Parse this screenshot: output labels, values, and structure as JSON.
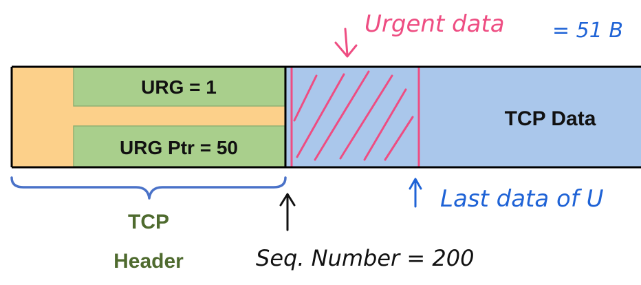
{
  "header_fields": {
    "urg_flag": "URG = 1",
    "urg_ptr": "URG Ptr = 50"
  },
  "data_label": "TCP Data",
  "header_caption": {
    "line1": "TCP",
    "line2": "Header"
  },
  "annotations": {
    "urgent_data": "Urgent data",
    "urgent_size": "= 51 B",
    "last_data": "Last data of U",
    "seq_number": "Seq. Number = 200"
  },
  "colors": {
    "header_bg": "#fcd08a",
    "field_bg": "#a9cf8c",
    "data_bg": "#aac7eb",
    "pink_ink": "#ee4d82",
    "blue_ink": "#1f63d6",
    "brace": "#4a72c8",
    "caption": "#4f6b2f",
    "black_ink": "#111111"
  }
}
